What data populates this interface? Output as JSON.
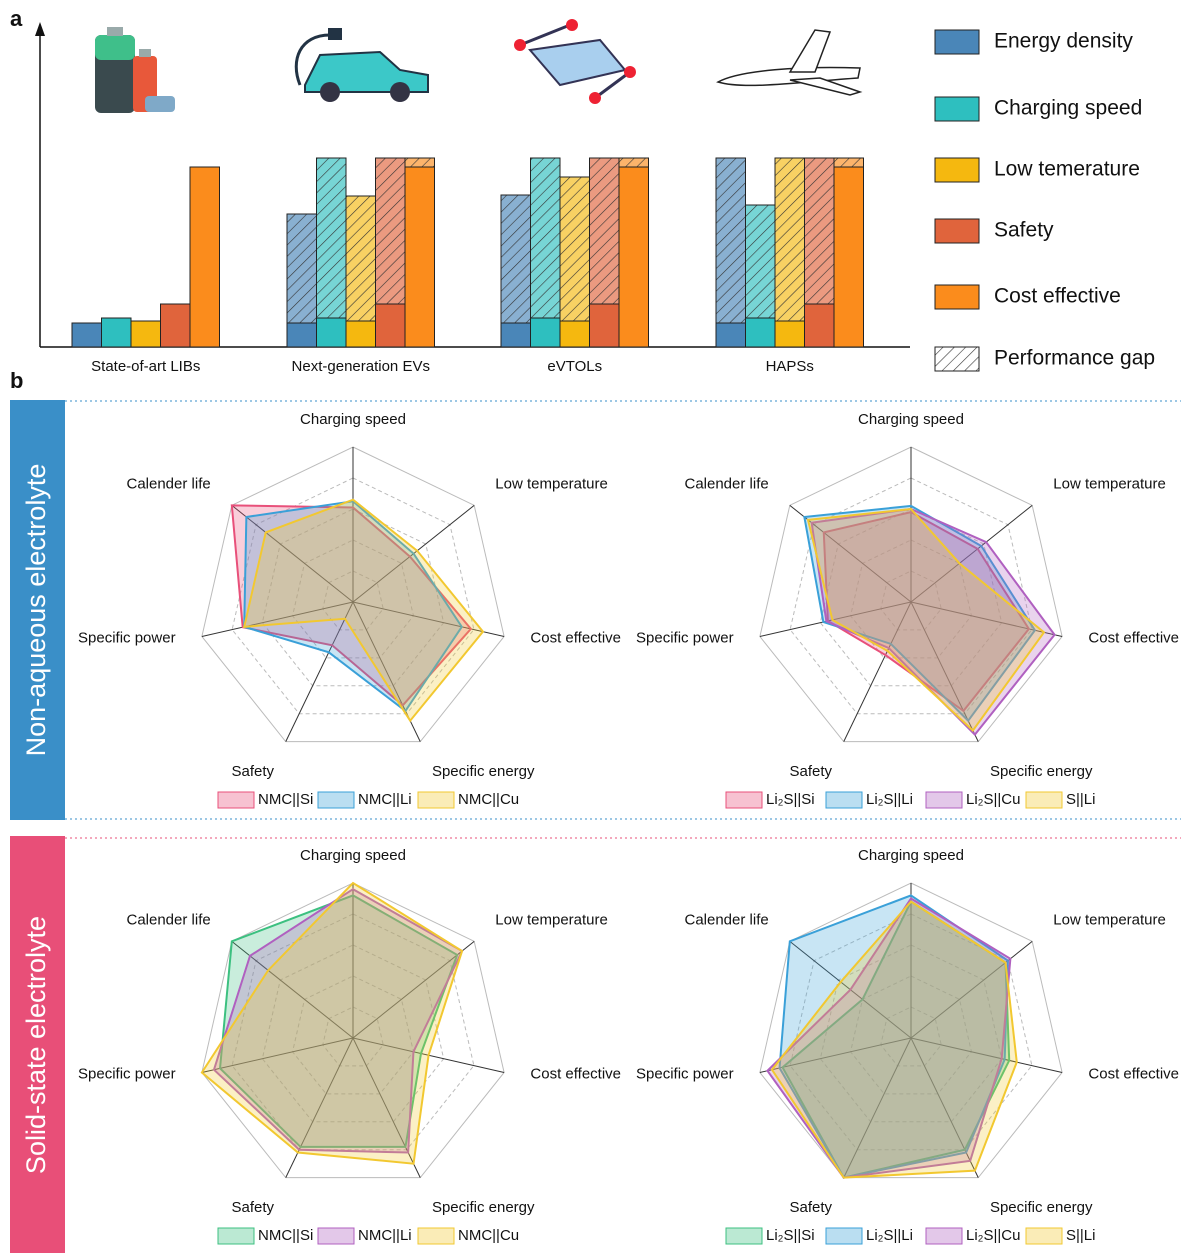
{
  "panel_labels": [
    "a",
    "b"
  ],
  "sections": [
    "Non-aqueous electrolyte",
    "Solid-state electrolyte"
  ],
  "chart_data": [
    {
      "type": "bar",
      "categories": [
        "State-of-art LIBs",
        "Next-generation EVs",
        "eVTOLs",
        "HAPSs"
      ],
      "ylim": [
        0,
        320
      ],
      "gap_label": "Performance gap",
      "series": [
        {
          "name": "Energy density",
          "color": "#4a86b8",
          "values": [
            24,
            24,
            24,
            24
          ],
          "gap": [
            0,
            109,
            128,
            165
          ]
        },
        {
          "name": "Charging speed",
          "color": "#2ebfbf",
          "values": [
            29,
            29,
            29,
            29
          ],
          "gap": [
            0,
            160,
            160,
            113
          ]
        },
        {
          "name": "Low temerature",
          "color": "#f5b80f",
          "values": [
            26,
            26,
            26,
            26
          ],
          "gap": [
            0,
            125,
            144,
            163
          ]
        },
        {
          "name": "Safety",
          "color": "#e0643c",
          "values": [
            43,
            43,
            43,
            43
          ],
          "gap": [
            0,
            146,
            146,
            146
          ]
        },
        {
          "name": "Cost  effective",
          "color": "#fb8c1c",
          "values": [
            180,
            180,
            180,
            180
          ],
          "gap": [
            0,
            9,
            9,
            9
          ]
        }
      ]
    },
    {
      "type": "radar",
      "axes": [
        "Charging speed",
        "Low temperature",
        "Cost effective",
        "Specific energy",
        "Safety",
        "Specific power",
        "Calender life"
      ],
      "rlim": [
        0,
        100
      ],
      "rticks": [
        20,
        40,
        60,
        80,
        100
      ],
      "series": [
        {
          "name": "NMC||Si",
          "color": "#e8507a",
          "values": [
            61,
            47,
            78,
            74,
            31,
            73,
            100
          ]
        },
        {
          "name": "NMC||Li",
          "color": "#3aa0d8",
          "values": [
            65,
            50,
            72,
            78,
            36,
            72,
            88
          ]
        },
        {
          "name": "NMC||Cu",
          "color": "#f2c830",
          "values": [
            66,
            53,
            86,
            85,
            12,
            72,
            72
          ]
        }
      ]
    },
    {
      "type": "radar",
      "axes": [
        "Charging speed",
        "Low temperature",
        "Cost effective",
        "Specific energy",
        "Safety",
        "Specific power",
        "Calender life"
      ],
      "rlim": [
        0,
        100
      ],
      "rticks": [
        20,
        40,
        60,
        80,
        100
      ],
      "series": [
        {
          "name": "Li₂S||Si",
          "color": "#e8507a",
          "values": [
            58,
            55,
            78,
            78,
            38,
            55,
            72
          ]
        },
        {
          "name": "Li₂S||Li",
          "color": "#3aa0d8",
          "values": [
            62,
            58,
            82,
            85,
            30,
            58,
            88
          ]
        },
        {
          "name": "Li₂S||Cu",
          "color": "#b060c0",
          "values": [
            60,
            62,
            95,
            95,
            33,
            56,
            82
          ]
        },
        {
          "name": "S||Li",
          "color": "#f2c830",
          "values": [
            60,
            40,
            88,
            92,
            35,
            52,
            85
          ]
        }
      ]
    },
    {
      "type": "radar",
      "axes": [
        "Charging speed",
        "Low temperature",
        "Cost effective",
        "Specific energy",
        "Safety",
        "Specific power",
        "Calender life"
      ],
      "rlim": [
        0,
        100
      ],
      "rticks": [
        20,
        40,
        60,
        80,
        100
      ],
      "series": [
        {
          "name": "NMC||Si",
          "color": "#3cc080",
          "values": [
            92,
            86,
            45,
            78,
            78,
            88,
            100
          ]
        },
        {
          "name": "NMC||Li",
          "color": "#b060c0",
          "values": [
            96,
            90,
            40,
            82,
            80,
            92,
            85
          ]
        },
        {
          "name": "NMC||Cu",
          "color": "#f2c830",
          "values": [
            100,
            90,
            50,
            90,
            82,
            100,
            70
          ]
        }
      ]
    },
    {
      "type": "radar",
      "axes": [
        "Charging speed",
        "Low temperature",
        "Cost effective",
        "Specific energy",
        "Safety",
        "Specific power",
        "Calender life"
      ],
      "rlim": [
        0,
        100
      ],
      "rticks": [
        20,
        40,
        60,
        80,
        100
      ],
      "series": [
        {
          "name": "Li₂S||Si",
          "color": "#3cc080",
          "values": [
            88,
            78,
            65,
            80,
            100,
            85,
            40
          ]
        },
        {
          "name": "Li₂S||Li",
          "color": "#3aa0d8",
          "values": [
            92,
            80,
            62,
            82,
            100,
            87,
            100
          ]
        },
        {
          "name": "Li₂S||Cu",
          "color": "#b060c0",
          "values": [
            90,
            82,
            60,
            88,
            100,
            95,
            50
          ]
        },
        {
          "name": "S||Li",
          "color": "#f2c830",
          "values": [
            88,
            78,
            70,
            95,
            100,
            92,
            58
          ]
        }
      ]
    }
  ]
}
